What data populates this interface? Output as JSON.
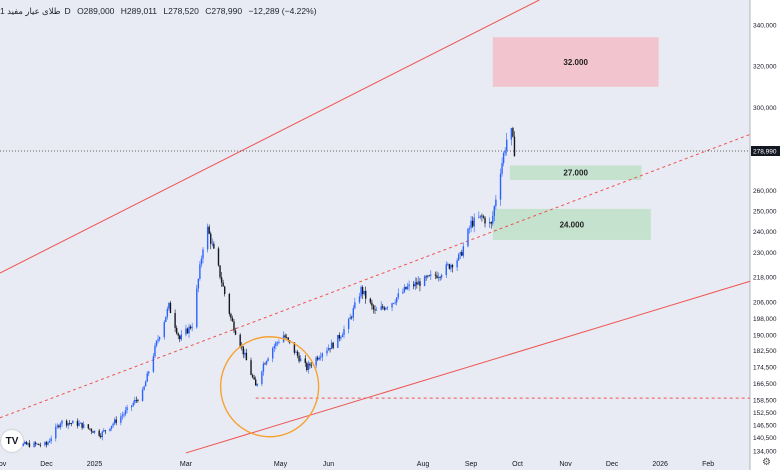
{
  "header": {
    "symbol": "طلای عیار مفید",
    "interval": "1D",
    "open": "O289,000",
    "high": "H289,011",
    "low": "L278,520",
    "close": "C278,990",
    "change": "−12,289 (−4.22%)"
  },
  "logo_text": "TV",
  "settings_icon": "gear-icon",
  "chart_data": {
    "type": "candlestick",
    "x_range": [
      "2024-11-01",
      "2026-02-28"
    ],
    "y_range": [
      132000,
      352000
    ],
    "x_ticks": [
      {
        "date": "2024-11-01",
        "label": "Nov"
      },
      {
        "date": "2024-12-01",
        "label": "Dec"
      },
      {
        "date": "2025-01-01",
        "label": "2025"
      },
      {
        "date": "2025-03-01",
        "label": "Mar"
      },
      {
        "date": "2025-05-01",
        "label": "May"
      },
      {
        "date": "2025-06-01",
        "label": "Jun"
      },
      {
        "date": "2025-08-01",
        "label": "Aug"
      },
      {
        "date": "2025-09-01",
        "label": "Sep"
      },
      {
        "date": "2025-10-01",
        "label": "Oct"
      },
      {
        "date": "2025-11-01",
        "label": "Nov"
      },
      {
        "date": "2025-12-01",
        "label": "Dec"
      },
      {
        "date": "2026-01-01",
        "label": "2026"
      },
      {
        "date": "2026-02-01",
        "label": "Feb"
      }
    ],
    "y_ticks": [
      {
        "value": 134000,
        "label": "134,000"
      },
      {
        "value": 140500,
        "label": "140,500"
      },
      {
        "value": 146500,
        "label": "146,500"
      },
      {
        "value": 152500,
        "label": "152,500"
      },
      {
        "value": 158500,
        "label": "158,500"
      },
      {
        "value": 166500,
        "label": "166,500"
      },
      {
        "value": 174500,
        "label": "174,500"
      },
      {
        "value": 182500,
        "label": "182,500"
      },
      {
        "value": 190000,
        "label": "190,000"
      },
      {
        "value": 198000,
        "label": "198,000"
      },
      {
        "value": 206000,
        "label": "206,000"
      },
      {
        "value": 218000,
        "label": "218,000"
      },
      {
        "value": 230000,
        "label": "230,000"
      },
      {
        "value": 240000,
        "label": "240,000"
      },
      {
        "value": 250000,
        "label": "250,000"
      },
      {
        "value": 260000,
        "label": "260,000"
      },
      {
        "value": 300000,
        "label": "300,000"
      },
      {
        "value": 320000,
        "label": "320,000"
      },
      {
        "value": 340000,
        "label": "340,000"
      }
    ],
    "last_price": {
      "value": 278990,
      "label": "278,990"
    },
    "anchor_prices": [
      {
        "date": "2024-11-01",
        "price": 139000
      },
      {
        "date": "2024-11-15",
        "price": 137000
      },
      {
        "date": "2024-12-01",
        "price": 137000
      },
      {
        "date": "2024-12-10",
        "price": 148000
      },
      {
        "date": "2024-12-22",
        "price": 147000
      },
      {
        "date": "2025-01-05",
        "price": 142000
      },
      {
        "date": "2025-01-20",
        "price": 152000
      },
      {
        "date": "2025-02-01",
        "price": 162000
      },
      {
        "date": "2025-02-10",
        "price": 186000
      },
      {
        "date": "2025-02-18",
        "price": 204000
      },
      {
        "date": "2025-02-25",
        "price": 188000
      },
      {
        "date": "2025-03-05",
        "price": 195000
      },
      {
        "date": "2025-03-14",
        "price": 244000
      },
      {
        "date": "2025-03-22",
        "price": 222000
      },
      {
        "date": "2025-03-30",
        "price": 198000
      },
      {
        "date": "2025-04-05",
        "price": 186000
      },
      {
        "date": "2025-04-15",
        "price": 165000
      },
      {
        "date": "2025-04-20",
        "price": 176000
      },
      {
        "date": "2025-04-26",
        "price": 184000
      },
      {
        "date": "2025-05-03",
        "price": 190000
      },
      {
        "date": "2025-05-12",
        "price": 180000
      },
      {
        "date": "2025-05-18",
        "price": 174000
      },
      {
        "date": "2025-05-28",
        "price": 182000
      },
      {
        "date": "2025-06-05",
        "price": 186000
      },
      {
        "date": "2025-06-14",
        "price": 196000
      },
      {
        "date": "2025-06-22",
        "price": 212000
      },
      {
        "date": "2025-07-01",
        "price": 201000
      },
      {
        "date": "2025-07-12",
        "price": 206000
      },
      {
        "date": "2025-07-22",
        "price": 213000
      },
      {
        "date": "2025-08-01",
        "price": 216000
      },
      {
        "date": "2025-08-12",
        "price": 220000
      },
      {
        "date": "2025-08-25",
        "price": 228000
      },
      {
        "date": "2025-09-01",
        "price": 244000
      },
      {
        "date": "2025-09-08",
        "price": 247000
      },
      {
        "date": "2025-09-14",
        "price": 243000
      },
      {
        "date": "2025-09-20",
        "price": 270000
      },
      {
        "date": "2025-09-26",
        "price": 292000
      },
      {
        "date": "2025-09-29",
        "price": 279000
      }
    ],
    "channel_lines": [
      {
        "name": "upper",
        "style": "solid",
        "color": "#ef5350",
        "p1": {
          "date": "2024-11-01",
          "price": 220000
        },
        "p2": {
          "date": "2025-10-15",
          "price": 352000
        }
      },
      {
        "name": "middle",
        "style": "dashed",
        "color": "#ef5350",
        "p1": {
          "date": "2024-11-01",
          "price": 150000
        },
        "p2": {
          "date": "2026-02-28",
          "price": 287000
        }
      },
      {
        "name": "lower",
        "style": "solid",
        "color": "#ef5350",
        "p1": {
          "date": "2025-03-01",
          "price": 133000
        },
        "p2": {
          "date": "2026-02-28",
          "price": 216000
        }
      }
    ],
    "horizontal_lines": [
      {
        "name": "support",
        "style": "dashed",
        "color": "#ef5350",
        "price": 159500,
        "from": "2025-04-15",
        "to": "2026-02-28"
      }
    ],
    "zones": [
      {
        "label": "32.000",
        "color": "#f5b7c0",
        "from": "2025-09-15",
        "to": "2025-12-31",
        "top": 334000,
        "bottom": 310000
      },
      {
        "label": "27.000",
        "color": "#b9dfc3",
        "from": "2025-09-26",
        "to": "2025-12-20",
        "top": 272000,
        "bottom": 265000
      },
      {
        "label": "24.000",
        "color": "#b9dfc3",
        "from": "2025-09-15",
        "to": "2025-12-26",
        "top": 251000,
        "bottom": 236000
      }
    ],
    "annotation_circle": {
      "date": "2025-04-24",
      "price": 165000,
      "color": "#f7a233"
    }
  }
}
